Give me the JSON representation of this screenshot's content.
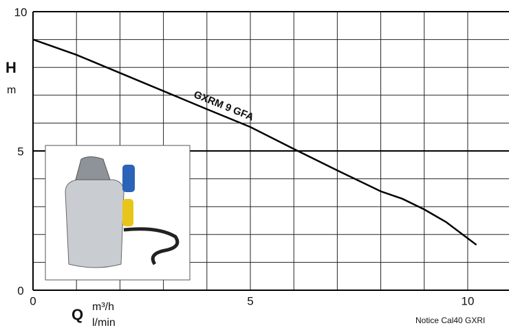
{
  "chart_data": {
    "type": "line",
    "series": [
      {
        "name": "GXRM 9 GFA",
        "color": "#000000",
        "x": [
          0,
          1,
          2,
          3,
          4,
          5,
          6,
          7,
          8,
          8.5,
          9,
          9.5,
          10.2
        ],
        "values": [
          9.0,
          8.45,
          7.8,
          7.15,
          6.5,
          5.86,
          5.07,
          4.3,
          3.55,
          3.28,
          2.9,
          2.45,
          1.63
        ]
      }
    ],
    "xlim": [
      0,
      10.95
    ],
    "ylim": [
      0,
      10
    ],
    "xticks": [
      0,
      5,
      10
    ],
    "yticks": [
      0,
      5,
      10
    ],
    "xgrid": [
      1,
      2,
      3,
      4,
      5,
      6,
      7,
      8,
      9,
      10
    ],
    "ygrid": [
      1,
      2,
      3,
      4,
      5,
      6,
      7,
      8,
      9
    ],
    "y_label": "H",
    "y_unit": "m",
    "x_label": "Q",
    "x_unit": "m³/h",
    "x_unit2": "l/min",
    "footer": "Notice Cal40 GXRI"
  }
}
